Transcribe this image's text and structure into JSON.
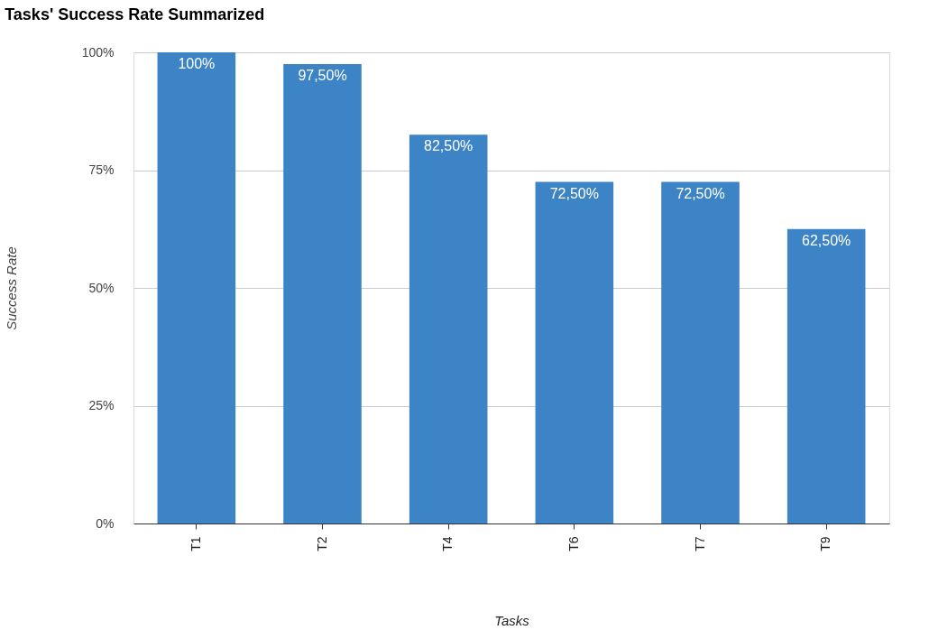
{
  "chart_data": {
    "type": "bar",
    "title": "Tasks' Success Rate Summarized",
    "xlabel": "Tasks",
    "ylabel": "Success Rate",
    "categories": [
      "T1",
      "T2",
      "T4",
      "T6",
      "T7",
      "T9"
    ],
    "values": [
      100,
      97.5,
      82.5,
      72.5,
      72.5,
      62.5
    ],
    "value_labels": [
      "100%",
      "97,50%",
      "82,50%",
      "72,50%",
      "72,50%",
      "62,50%"
    ],
    "color": "#3d84c6",
    "ylim": [
      0,
      100
    ],
    "yticks": [
      {
        "value": 0,
        "label": "0%"
      },
      {
        "value": 25,
        "label": "25%"
      },
      {
        "value": 50,
        "label": "50%"
      },
      {
        "value": 75,
        "label": "75%"
      },
      {
        "value": 100,
        "label": "100%"
      }
    ],
    "grid": "y"
  }
}
